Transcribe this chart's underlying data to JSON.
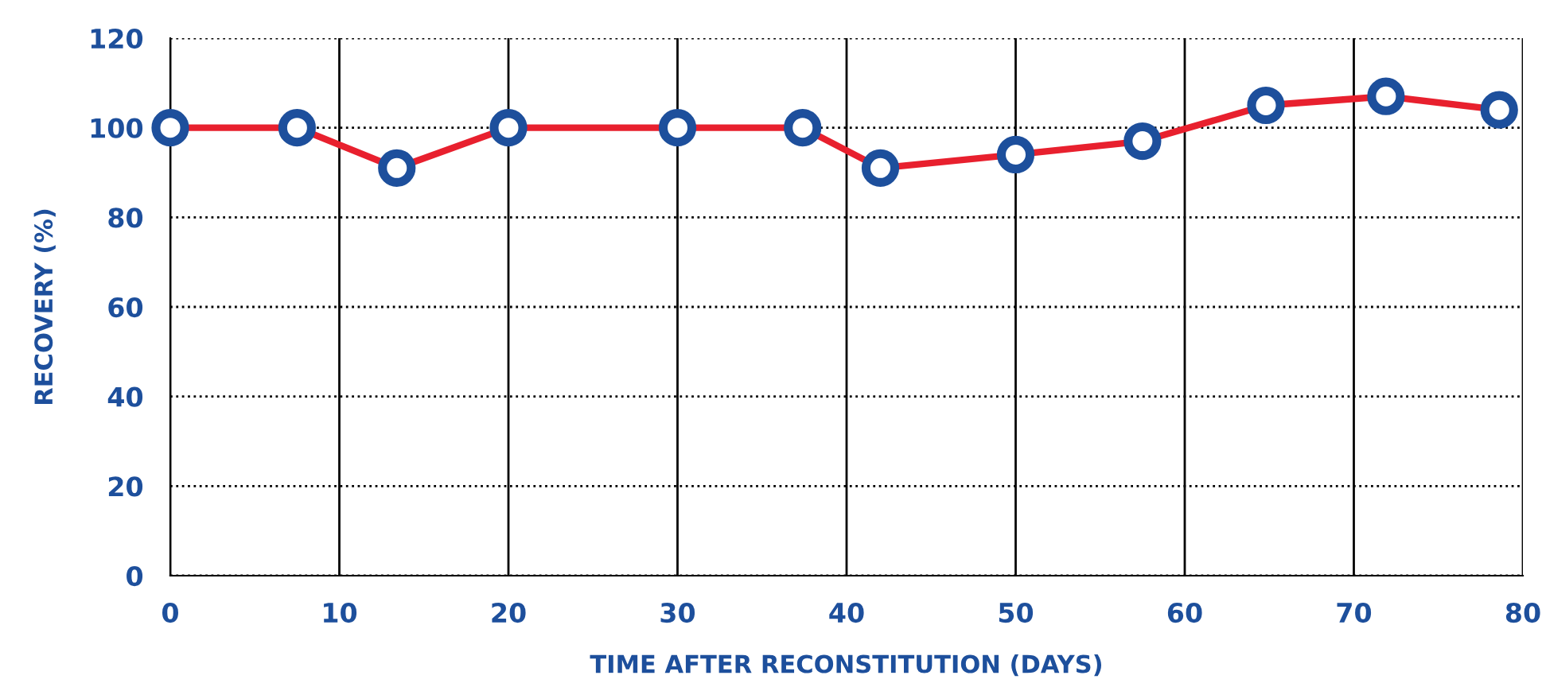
{
  "chart_data": {
    "type": "line",
    "xlabel": "TIME AFTER RECONSTITUTION (DAYS)",
    "ylabel": "RECOVERY (%)",
    "x": [
      0,
      7.5,
      13.4,
      20,
      30,
      37.4,
      42,
      50,
      57.5,
      64.8,
      71.9,
      78.6
    ],
    "series": [
      {
        "color": "#e8202e",
        "values": [
          100,
          100,
          91,
          100,
          100,
          100,
          91,
          94,
          97,
          105,
          107,
          104
        ]
      }
    ],
    "xlim": [
      0,
      80
    ],
    "ylim": [
      0,
      120
    ],
    "xticks": [
      0,
      10,
      20,
      30,
      40,
      50,
      60,
      70,
      80
    ],
    "yticks": [
      0,
      20,
      40,
      60,
      80,
      100,
      120
    ],
    "grid": true,
    "marker": "circle",
    "line_style": "solid"
  }
}
